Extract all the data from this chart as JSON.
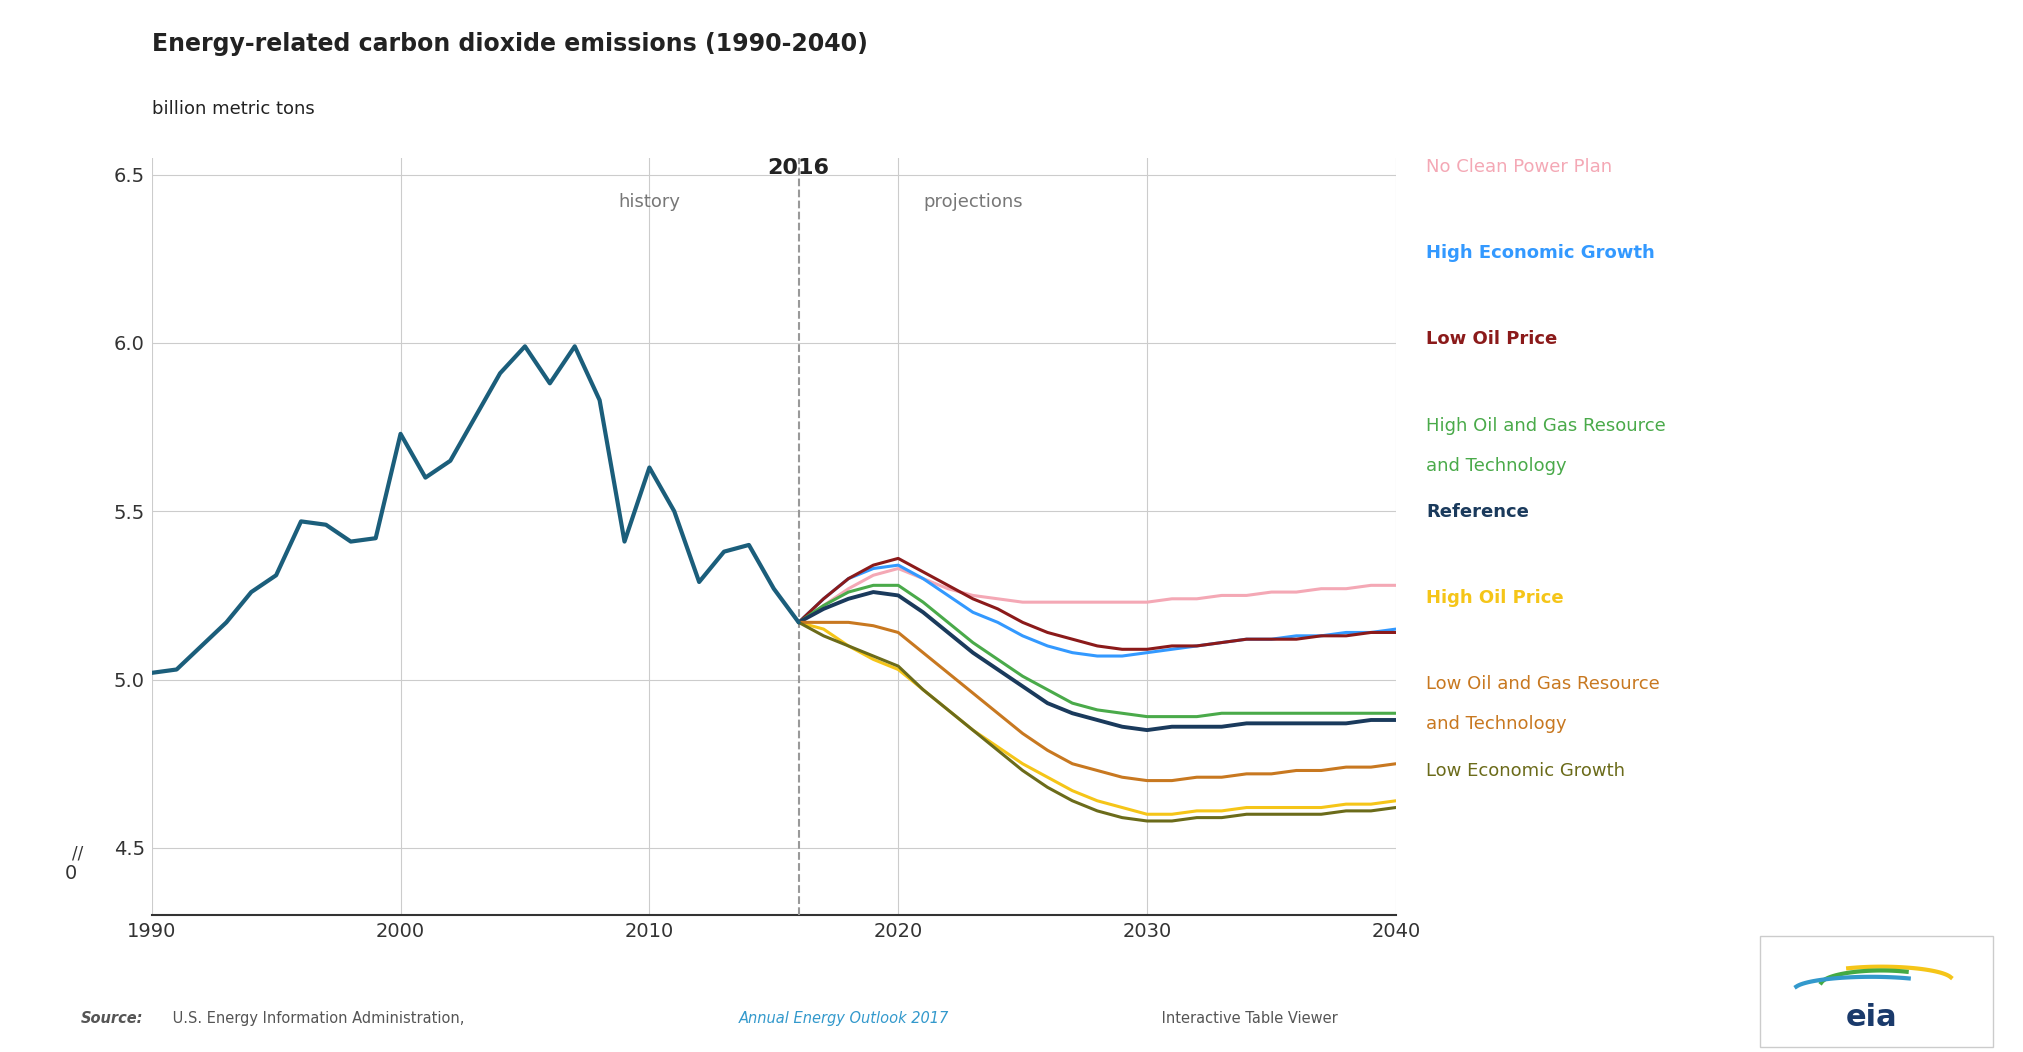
{
  "title": "Energy-related carbon dioxide emissions (1990-2040)",
  "subtitle": "billion metric tons",
  "title_year": "2016",
  "history_label": "history",
  "projections_label": "projections",
  "background_color": "#ffffff",
  "plot_bg_color": "#ffffff",
  "grid_color": "#cccccc",
  "split_year": 2016,
  "xlim": [
    1990,
    2040
  ],
  "ylim": [
    4.3,
    6.55
  ],
  "yticks": [
    4.5,
    5.0,
    5.5,
    6.0,
    6.5
  ],
  "ytick_labels": [
    "4.5",
    "5.0",
    "5.5",
    "6.0",
    "6.5"
  ],
  "xticks": [
    1990,
    2000,
    2010,
    2020,
    2030,
    2040
  ],
  "history_line": {
    "color": "#1b5e7b",
    "linewidth": 3.0,
    "years": [
      1990,
      1991,
      1992,
      1993,
      1994,
      1995,
      1996,
      1997,
      1998,
      1999,
      2000,
      2001,
      2002,
      2003,
      2004,
      2005,
      2006,
      2007,
      2008,
      2009,
      2010,
      2011,
      2012,
      2013,
      2014,
      2015,
      2016
    ],
    "values": [
      5.02,
      5.03,
      5.1,
      5.17,
      5.26,
      5.31,
      5.47,
      5.46,
      5.41,
      5.42,
      5.73,
      5.6,
      5.65,
      5.78,
      5.91,
      5.99,
      5.88,
      5.99,
      5.83,
      5.41,
      5.63,
      5.5,
      5.29,
      5.38,
      5.4,
      5.27,
      5.17
    ]
  },
  "projection_lines": [
    {
      "label": "No Clean Power Plan",
      "label2": "",
      "color": "#f4a8b5",
      "bold": false,
      "linewidth": 2.2,
      "years": [
        2016,
        2017,
        2018,
        2019,
        2020,
        2021,
        2022,
        2023,
        2024,
        2025,
        2026,
        2027,
        2028,
        2029,
        2030,
        2031,
        2032,
        2033,
        2034,
        2035,
        2036,
        2037,
        2038,
        2039,
        2040
      ],
      "values": [
        5.17,
        5.22,
        5.27,
        5.31,
        5.33,
        5.3,
        5.27,
        5.25,
        5.24,
        5.23,
        5.23,
        5.23,
        5.23,
        5.23,
        5.23,
        5.24,
        5.24,
        5.25,
        5.25,
        5.26,
        5.26,
        5.27,
        5.27,
        5.28,
        5.28
      ]
    },
    {
      "label": "High Economic Growth",
      "label2": "",
      "color": "#3399ff",
      "bold": true,
      "linewidth": 2.2,
      "years": [
        2016,
        2017,
        2018,
        2019,
        2020,
        2021,
        2022,
        2023,
        2024,
        2025,
        2026,
        2027,
        2028,
        2029,
        2030,
        2031,
        2032,
        2033,
        2034,
        2035,
        2036,
        2037,
        2038,
        2039,
        2040
      ],
      "values": [
        5.17,
        5.24,
        5.3,
        5.33,
        5.34,
        5.3,
        5.25,
        5.2,
        5.17,
        5.13,
        5.1,
        5.08,
        5.07,
        5.07,
        5.08,
        5.09,
        5.1,
        5.11,
        5.12,
        5.12,
        5.13,
        5.13,
        5.14,
        5.14,
        5.15
      ]
    },
    {
      "label": "Low Oil Price",
      "label2": "",
      "color": "#8b1a1a",
      "bold": true,
      "linewidth": 2.2,
      "years": [
        2016,
        2017,
        2018,
        2019,
        2020,
        2021,
        2022,
        2023,
        2024,
        2025,
        2026,
        2027,
        2028,
        2029,
        2030,
        2031,
        2032,
        2033,
        2034,
        2035,
        2036,
        2037,
        2038,
        2039,
        2040
      ],
      "values": [
        5.17,
        5.24,
        5.3,
        5.34,
        5.36,
        5.32,
        5.28,
        5.24,
        5.21,
        5.17,
        5.14,
        5.12,
        5.1,
        5.09,
        5.09,
        5.1,
        5.1,
        5.11,
        5.12,
        5.12,
        5.12,
        5.13,
        5.13,
        5.14,
        5.14
      ]
    },
    {
      "label": "High Oil and Gas Resource",
      "label2": "and Technology",
      "color": "#4aaa4a",
      "bold": false,
      "linewidth": 2.2,
      "years": [
        2016,
        2017,
        2018,
        2019,
        2020,
        2021,
        2022,
        2023,
        2024,
        2025,
        2026,
        2027,
        2028,
        2029,
        2030,
        2031,
        2032,
        2033,
        2034,
        2035,
        2036,
        2037,
        2038,
        2039,
        2040
      ],
      "values": [
        5.17,
        5.22,
        5.26,
        5.28,
        5.28,
        5.23,
        5.17,
        5.11,
        5.06,
        5.01,
        4.97,
        4.93,
        4.91,
        4.9,
        4.89,
        4.89,
        4.89,
        4.9,
        4.9,
        4.9,
        4.9,
        4.9,
        4.9,
        4.9,
        4.9
      ]
    },
    {
      "label": "Reference",
      "label2": "",
      "color": "#1a3a5c",
      "bold": true,
      "linewidth": 2.8,
      "years": [
        2016,
        2017,
        2018,
        2019,
        2020,
        2021,
        2022,
        2023,
        2024,
        2025,
        2026,
        2027,
        2028,
        2029,
        2030,
        2031,
        2032,
        2033,
        2034,
        2035,
        2036,
        2037,
        2038,
        2039,
        2040
      ],
      "values": [
        5.17,
        5.21,
        5.24,
        5.26,
        5.25,
        5.2,
        5.14,
        5.08,
        5.03,
        4.98,
        4.93,
        4.9,
        4.88,
        4.86,
        4.85,
        4.86,
        4.86,
        4.86,
        4.87,
        4.87,
        4.87,
        4.87,
        4.87,
        4.88,
        4.88
      ]
    },
    {
      "label": "High Oil Price",
      "label2": "",
      "color": "#f5c518",
      "bold": true,
      "linewidth": 2.2,
      "years": [
        2016,
        2017,
        2018,
        2019,
        2020,
        2021,
        2022,
        2023,
        2024,
        2025,
        2026,
        2027,
        2028,
        2029,
        2030,
        2031,
        2032,
        2033,
        2034,
        2035,
        2036,
        2037,
        2038,
        2039,
        2040
      ],
      "values": [
        5.17,
        5.15,
        5.1,
        5.06,
        5.03,
        4.97,
        4.91,
        4.85,
        4.8,
        4.75,
        4.71,
        4.67,
        4.64,
        4.62,
        4.6,
        4.6,
        4.61,
        4.61,
        4.62,
        4.62,
        4.62,
        4.62,
        4.63,
        4.63,
        4.64
      ]
    },
    {
      "label": "Low Oil and Gas Resource",
      "label2": "and Technology",
      "color": "#c87820",
      "bold": false,
      "linewidth": 2.2,
      "years": [
        2016,
        2017,
        2018,
        2019,
        2020,
        2021,
        2022,
        2023,
        2024,
        2025,
        2026,
        2027,
        2028,
        2029,
        2030,
        2031,
        2032,
        2033,
        2034,
        2035,
        2036,
        2037,
        2038,
        2039,
        2040
      ],
      "values": [
        5.17,
        5.17,
        5.17,
        5.16,
        5.14,
        5.08,
        5.02,
        4.96,
        4.9,
        4.84,
        4.79,
        4.75,
        4.73,
        4.71,
        4.7,
        4.7,
        4.71,
        4.71,
        4.72,
        4.72,
        4.73,
        4.73,
        4.74,
        4.74,
        4.75
      ]
    },
    {
      "label": "Low Economic Growth",
      "label2": "",
      "color": "#6b6b1a",
      "bold": false,
      "linewidth": 2.2,
      "years": [
        2016,
        2017,
        2018,
        2019,
        2020,
        2021,
        2022,
        2023,
        2024,
        2025,
        2026,
        2027,
        2028,
        2029,
        2030,
        2031,
        2032,
        2033,
        2034,
        2035,
        2036,
        2037,
        2038,
        2039,
        2040
      ],
      "values": [
        5.17,
        5.13,
        5.1,
        5.07,
        5.04,
        4.97,
        4.91,
        4.85,
        4.79,
        4.73,
        4.68,
        4.64,
        4.61,
        4.59,
        4.58,
        4.58,
        4.59,
        4.59,
        4.6,
        4.6,
        4.6,
        4.6,
        4.61,
        4.61,
        4.62
      ]
    }
  ],
  "legend_entries": [
    {
      "label": "No Clean Power Plan",
      "label2": "",
      "color": "#f4a8b5",
      "bold": false
    },
    {
      "label": "High Economic Growth",
      "label2": "",
      "color": "#3399ff",
      "bold": true
    },
    {
      "label": "Low Oil Price",
      "label2": "",
      "color": "#8b1a1a",
      "bold": true
    },
    {
      "label": "High Oil and Gas Resource",
      "label2": "and Technology",
      "color": "#4aaa4a",
      "bold": false
    },
    {
      "label": "Reference",
      "label2": "",
      "color": "#1a3a5c",
      "bold": true
    },
    {
      "label": "High Oil Price",
      "label2": "",
      "color": "#f5c518",
      "bold": true
    },
    {
      "label": "Low Oil and Gas Resource",
      "label2": "and Technology",
      "color": "#c87820",
      "bold": false
    },
    {
      "label": "Low Economic Growth",
      "label2": "",
      "color": "#6b6b1a",
      "bold": false
    }
  ]
}
